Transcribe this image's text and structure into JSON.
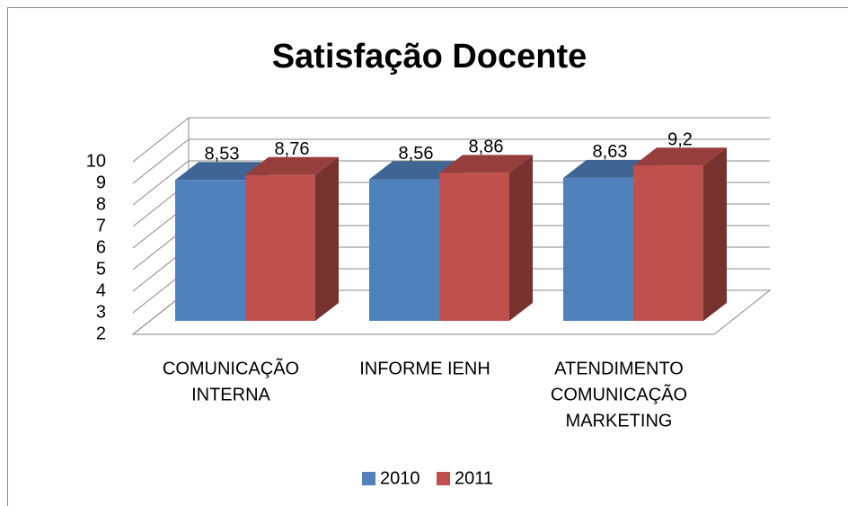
{
  "chart_data": {
    "type": "bar3d",
    "title": "Satisfação Docente",
    "categories": [
      [
        "COMUNICAÇÃO",
        "INTERNA"
      ],
      [
        "INFORME IENH"
      ],
      [
        "ATENDIMENTO",
        "COMUNICAÇÃO",
        "MARKETING"
      ]
    ],
    "series": [
      {
        "name": "2010",
        "color": "#4f81bd",
        "values": [
          8.53,
          8.56,
          8.63
        ],
        "value_labels": [
          "8,53",
          "8,56",
          "8,63"
        ]
      },
      {
        "name": "2011",
        "color": "#c0504d",
        "values": [
          8.76,
          8.86,
          9.2
        ],
        "value_labels": [
          "8,76",
          "8,86",
          "9,2"
        ]
      }
    ],
    "ylim": [
      2,
      10
    ],
    "yticks": [
      2,
      3,
      4,
      5,
      6,
      7,
      8,
      9,
      10
    ],
    "grid": true,
    "legend": "bottom"
  }
}
